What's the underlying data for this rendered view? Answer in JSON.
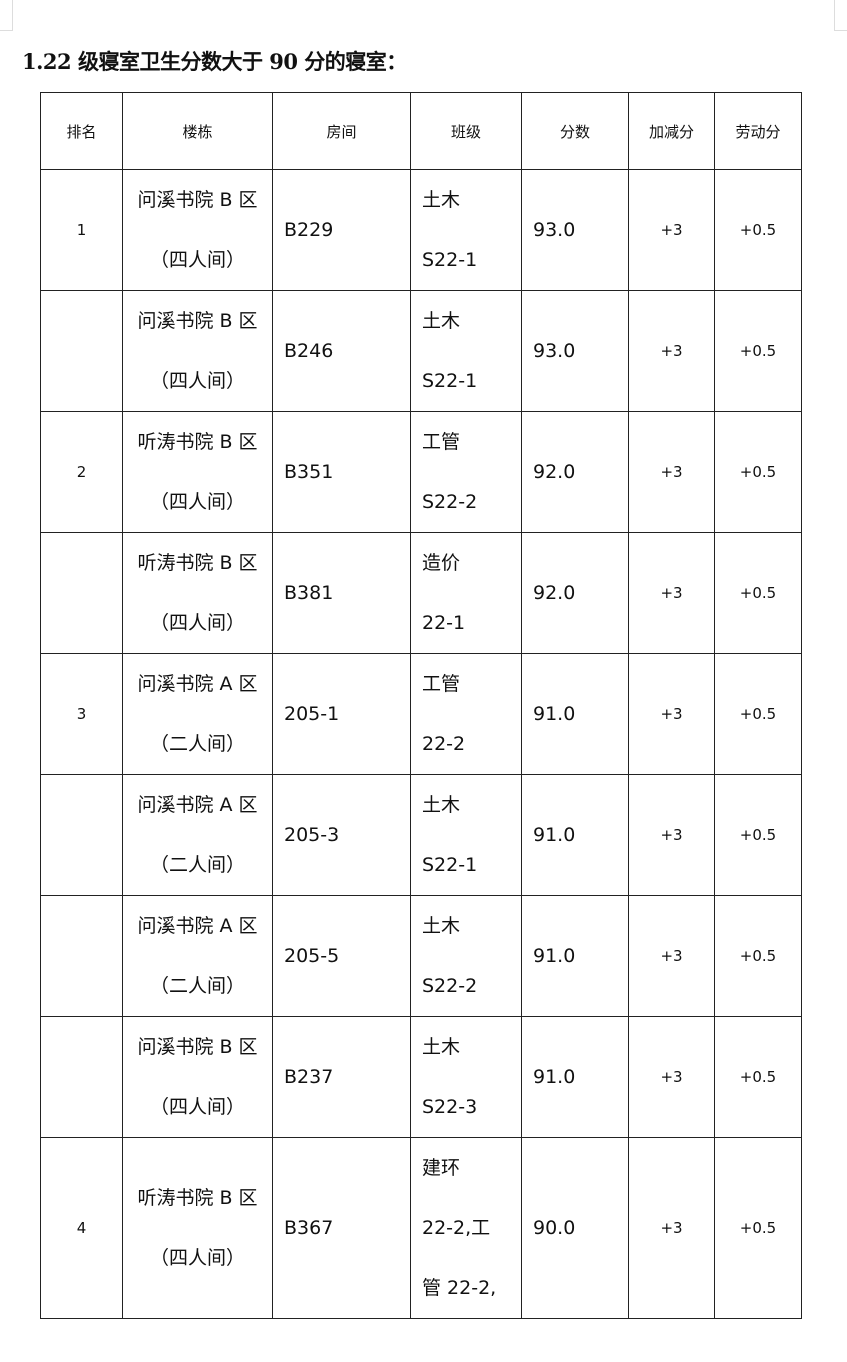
{
  "title": "1.22 级寝室卫生分数大于 90 分的寝室：",
  "headers": [
    "排名",
    "楼栋",
    "房间",
    "班级",
    "分数",
    "加减分",
    "劳动分"
  ],
  "rows": [
    {
      "rank": "1",
      "building": [
        "问溪书院 B 区",
        "（四人间）"
      ],
      "room": "B229",
      "class": [
        "土木",
        "S22-1"
      ],
      "score": "93.0",
      "adjust": "+3",
      "labor": "+0.5"
    },
    {
      "rank": "",
      "building": [
        "问溪书院 B 区",
        "（四人间）"
      ],
      "room": "B246",
      "class": [
        "土木",
        "S22-1"
      ],
      "score": "93.0",
      "adjust": "+3",
      "labor": "+0.5"
    },
    {
      "rank": "2",
      "building": [
        "听涛书院 B 区",
        "（四人间）"
      ],
      "room": "B351",
      "class": [
        "工管",
        "S22-2"
      ],
      "score": "92.0",
      "adjust": "+3",
      "labor": "+0.5"
    },
    {
      "rank": "",
      "building": [
        "听涛书院 B 区",
        "（四人间）"
      ],
      "room": "B381",
      "class": [
        "造价",
        "22-1"
      ],
      "score": "92.0",
      "adjust": "+3",
      "labor": "+0.5"
    },
    {
      "rank": "3",
      "building": [
        "问溪书院 A 区",
        "（二人间）"
      ],
      "room": "205-1",
      "class": [
        "工管",
        "22-2"
      ],
      "score": "91.0",
      "adjust": "+3",
      "labor": "+0.5"
    },
    {
      "rank": "",
      "building": [
        "问溪书院 A 区",
        "（二人间）"
      ],
      "room": "205-3",
      "class": [
        "土木",
        "S22-1"
      ],
      "score": "91.0",
      "adjust": "+3",
      "labor": "+0.5"
    },
    {
      "rank": "",
      "building": [
        "问溪书院 A 区",
        "（二人间）"
      ],
      "room": "205-5",
      "class": [
        "土木",
        "S22-2"
      ],
      "score": "91.0",
      "adjust": "+3",
      "labor": "+0.5"
    },
    {
      "rank": "",
      "building": [
        "问溪书院 B 区",
        "（四人间）"
      ],
      "room": "B237",
      "class": [
        "土木",
        "S22-3"
      ],
      "score": "91.0",
      "adjust": "+3",
      "labor": "+0.5"
    },
    {
      "rank": "4",
      "building": [
        "听涛书院 B 区",
        "（四人间）"
      ],
      "room": "B367",
      "class": [
        "建环",
        "22-2,工",
        "管 22-2,"
      ],
      "score": "90.0",
      "adjust": "+3",
      "labor": "+0.5"
    }
  ]
}
